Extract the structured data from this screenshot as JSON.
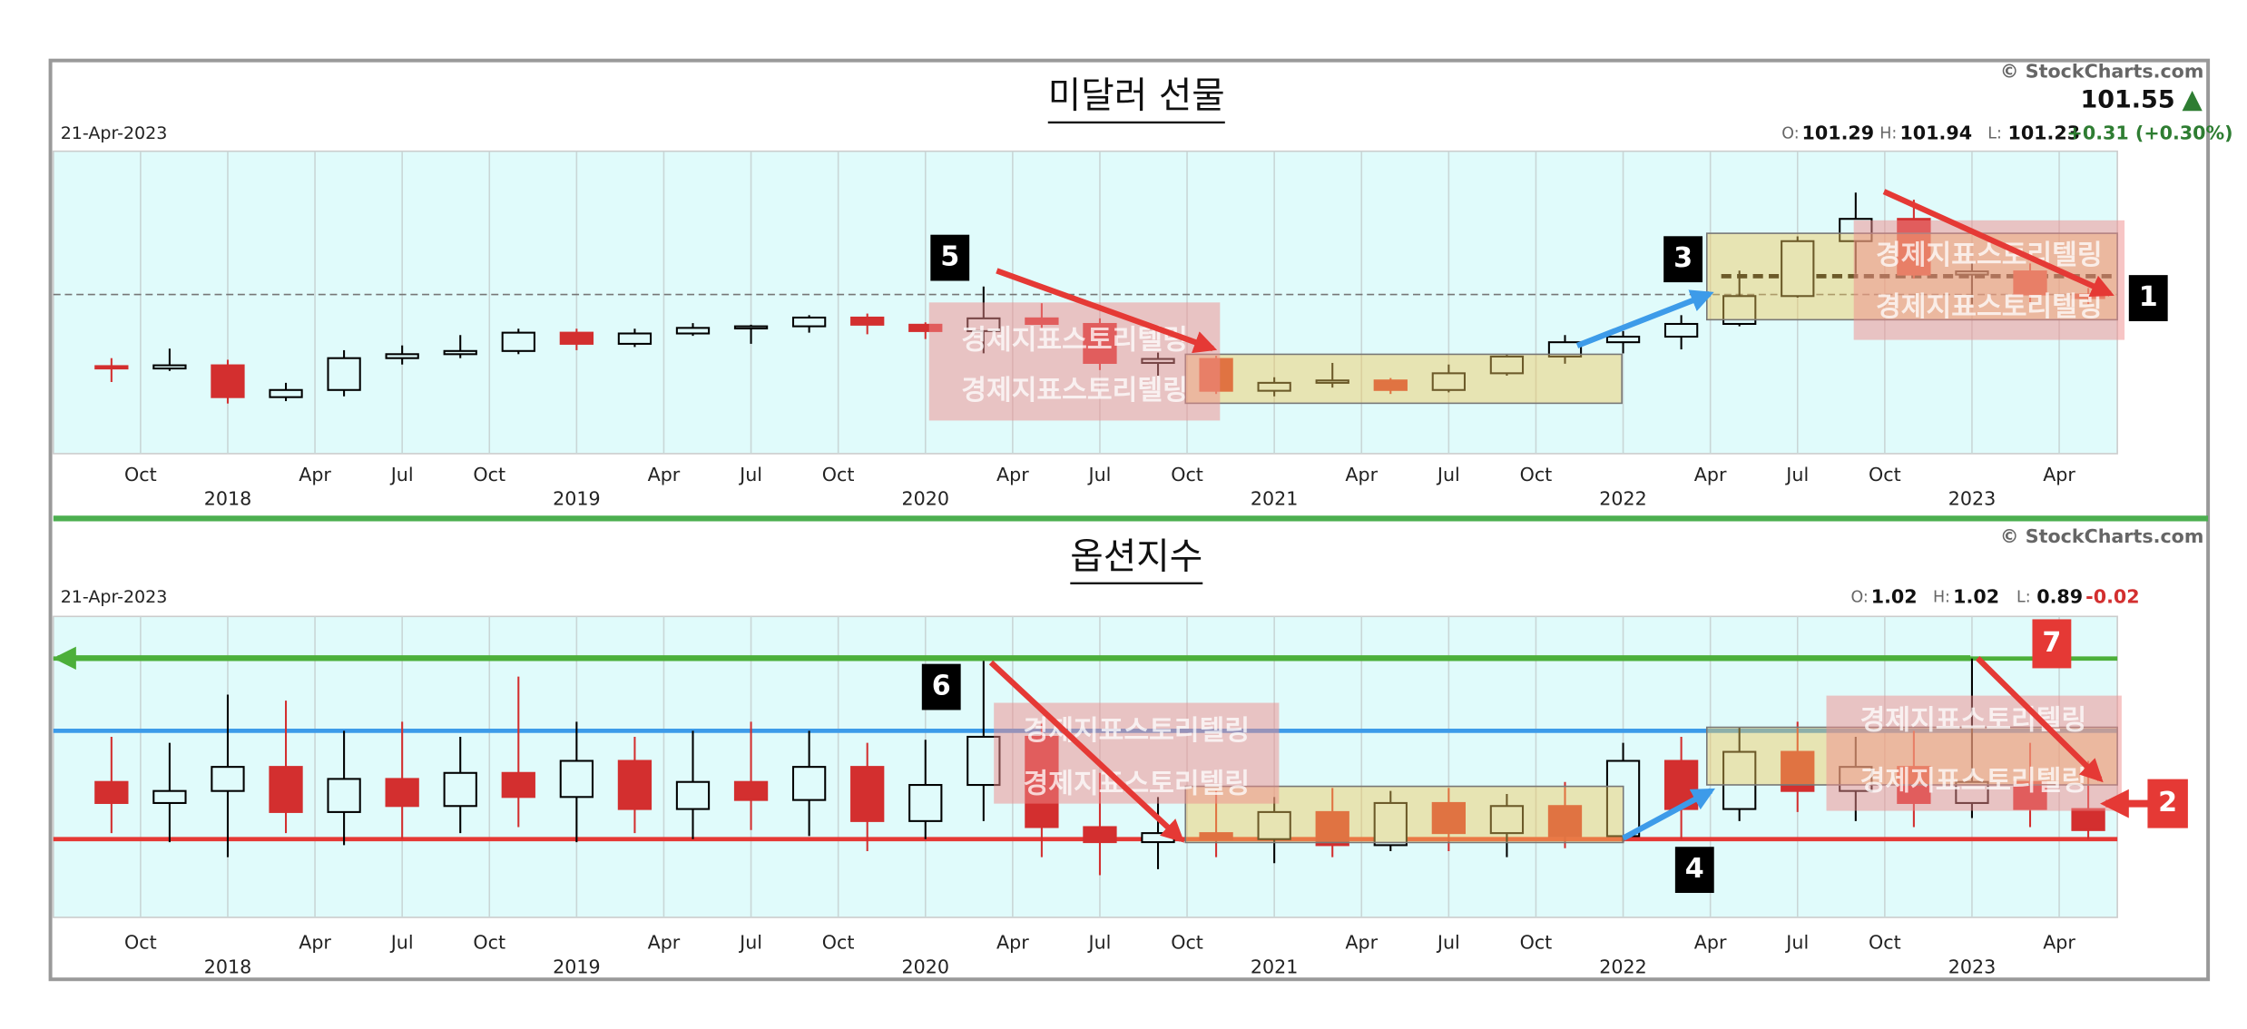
{
  "watermark": "경제지표스토리텔링",
  "callouts": [
    "1",
    "2",
    "3",
    "4",
    "5",
    "6",
    "7"
  ],
  "chart_data": [
    {
      "type": "candlestick",
      "title": "미달러 선물",
      "date": "21-Apr-2023",
      "source": "© StockCharts.com",
      "last": 101.55,
      "ohlc_labels": [
        "O:",
        "H:",
        "L:"
      ],
      "ohlc_values": [
        101.29,
        101.94,
        101.23
      ],
      "change": "+0.31 (+0.30%)",
      "change_color": "#2e7d32",
      "x": [
        "2017-08",
        "2017-10",
        "2017-12",
        "2018-02",
        "2018-04",
        "2018-06",
        "2018-08",
        "2018-10",
        "2018-12",
        "2019-02",
        "2019-04",
        "2019-06",
        "2019-08",
        "2019-10",
        "2019-12",
        "2020-02",
        "2020-04",
        "2020-06",
        "2020-08",
        "2020-10",
        "2020-12",
        "2021-02",
        "2021-04",
        "2021-06",
        "2021-08",
        "2021-10",
        "2021-12",
        "2022-02",
        "2022-04",
        "2022-06",
        "2022-08",
        "2022-10",
        "2022-12",
        "2023-02",
        "2023-04"
      ],
      "open": [
        93.0,
        92.7,
        93.1,
        89.1,
        90.0,
        94.0,
        94.5,
        94.9,
        97.2,
        95.8,
        97.1,
        97.8,
        98.0,
        99.1,
        98.2,
        97.4,
        99.0,
        98.3,
        93.4,
        93.9,
        89.9,
        90.9,
        91.2,
        90.0,
        92.1,
        94.2,
        96.0,
        96.7,
        98.3,
        101.8,
        108.7,
        111.5,
        104.5,
        104.9,
        102.0
      ],
      "high": [
        94.0,
        95.2,
        93.8,
        90.9,
        95.0,
        95.6,
        96.9,
        97.7,
        97.7,
        97.7,
        98.4,
        98.2,
        99.4,
        99.6,
        98.5,
        103.0,
        100.9,
        99.0,
        94.7,
        94.3,
        91.6,
        93.4,
        91.5,
        93.2,
        94.5,
        96.9,
        97.4,
        99.4,
        105.0,
        109.3,
        114.8,
        113.9,
        105.9,
        105.9,
        102.8
      ],
      "low": [
        91.0,
        92.4,
        88.3,
        88.6,
        89.2,
        93.2,
        94.0,
        94.5,
        95.0,
        95.4,
        96.8,
        95.8,
        97.2,
        97.0,
        96.4,
        94.6,
        97.8,
        92.5,
        91.8,
        89.5,
        89.2,
        90.3,
        89.5,
        89.7,
        91.8,
        93.3,
        94.6,
        95.1,
        98.0,
        101.6,
        104.6,
        104.0,
        100.8,
        100.8,
        100.8
      ],
      "close": [
        92.7,
        93.1,
        89.1,
        90.0,
        94.0,
        94.5,
        94.9,
        97.2,
        95.8,
        97.1,
        97.8,
        98.0,
        99.1,
        98.2,
        97.4,
        99.0,
        98.3,
        93.4,
        93.9,
        89.9,
        90.9,
        91.2,
        90.0,
        92.1,
        94.2,
        96.0,
        96.7,
        98.3,
        101.8,
        108.7,
        111.5,
        104.5,
        104.9,
        102.0,
        101.55
      ],
      "up_color": "#000000",
      "down_color": "#d32f2f",
      "background": "#e0fbfb",
      "xlim": [
        "2017-07",
        "2023-06"
      ],
      "ylim": [
        82,
        120
      ],
      "reference_lines": [
        {
          "value": 102.0,
          "color": "#777777"
        },
        {
          "value": 104.3,
          "color": "#000000"
        }
      ],
      "xticks": [
        {
          "value": "2017-10",
          "label": "Oct"
        },
        {
          "value": "2018-01",
          "label": "2018"
        },
        {
          "value": "2018-04",
          "label": "Apr"
        },
        {
          "value": "2018-07",
          "label": "Jul"
        },
        {
          "value": "2018-10",
          "label": "Oct"
        },
        {
          "value": "2019-01",
          "label": "2019"
        },
        {
          "value": "2019-04",
          "label": "Apr"
        },
        {
          "value": "2019-07",
          "label": "Jul"
        },
        {
          "value": "2019-10",
          "label": "Oct"
        },
        {
          "value": "2020-01",
          "label": "2020"
        },
        {
          "value": "2020-04",
          "label": "Apr"
        },
        {
          "value": "2020-07",
          "label": "Jul"
        },
        {
          "value": "2020-10",
          "label": "Oct"
        },
        {
          "value": "2021-01",
          "label": "2021"
        },
        {
          "value": "2021-04",
          "label": "Apr"
        },
        {
          "value": "2021-07",
          "label": "Jul"
        },
        {
          "value": "2021-10",
          "label": "Oct"
        },
        {
          "value": "2022-01",
          "label": "2022"
        },
        {
          "value": "2022-04",
          "label": "Apr"
        },
        {
          "value": "2022-07",
          "label": "Jul"
        },
        {
          "value": "2022-10",
          "label": "Oct"
        },
        {
          "value": "2023-01",
          "label": "2023"
        },
        {
          "value": "2023-04",
          "label": "Apr"
        }
      ],
      "grid": true
    },
    {
      "type": "candlestick",
      "title": "옵션지수",
      "date": "21-Apr-2023",
      "source": "© StockCharts.com",
      "ohlc_labels": [
        "O:",
        "H:",
        "L:"
      ],
      "ohlc_values": [
        1.02,
        1.02,
        0.89
      ],
      "change": "-0.02",
      "change_color": "#d32f2f",
      "x": [
        "2017-08",
        "2017-10",
        "2017-12",
        "2018-02",
        "2018-04",
        "2018-06",
        "2018-08",
        "2018-10",
        "2018-12",
        "2019-02",
        "2019-04",
        "2019-06",
        "2019-08",
        "2019-10",
        "2019-12",
        "2020-02",
        "2020-04",
        "2020-06",
        "2020-08",
        "2020-10",
        "2020-12",
        "2021-02",
        "2021-04",
        "2021-06",
        "2021-08",
        "2021-10",
        "2021-12",
        "2022-02",
        "2022-04",
        "2022-06",
        "2022-08",
        "2022-10",
        "2022-12",
        "2023-02",
        "2023-04"
      ],
      "open": [
        1.05,
        0.98,
        1.02,
        1.1,
        0.95,
        1.06,
        0.97,
        1.08,
        1.0,
        1.12,
        0.96,
        1.05,
        0.99,
        1.1,
        0.92,
        1.04,
        1.2,
        0.9,
        0.85,
        0.88,
        0.86,
        0.95,
        0.84,
        0.98,
        0.88,
        0.97,
        0.87,
        1.12,
        0.96,
        1.15,
        1.02,
        1.1,
        0.98,
        1.05,
        0.96
      ],
      "high": [
        1.2,
        1.18,
        1.34,
        1.32,
        1.22,
        1.25,
        1.2,
        1.4,
        1.25,
        1.2,
        1.22,
        1.25,
        1.22,
        1.18,
        1.19,
        1.46,
        1.25,
        1.08,
        1.0,
        1.02,
        1.0,
        1.03,
        1.02,
        1.03,
        1.01,
        1.05,
        1.18,
        1.2,
        1.23,
        1.25,
        1.2,
        1.22,
        1.46,
        1.18,
        1.12
      ],
      "low": [
        0.88,
        0.85,
        0.8,
        0.88,
        0.84,
        0.86,
        0.88,
        0.9,
        0.85,
        0.88,
        0.86,
        0.89,
        0.87,
        0.82,
        0.86,
        0.92,
        0.8,
        0.74,
        0.76,
        0.8,
        0.78,
        0.8,
        0.82,
        0.82,
        0.8,
        0.83,
        0.85,
        0.86,
        0.92,
        0.95,
        0.92,
        0.9,
        0.93,
        0.9,
        0.86
      ],
      "close": [
        0.98,
        1.02,
        1.1,
        0.95,
        1.06,
        0.97,
        1.08,
        1.0,
        1.12,
        0.96,
        1.05,
        0.99,
        1.1,
        0.92,
        1.04,
        1.2,
        0.9,
        0.85,
        0.88,
        0.86,
        0.95,
        0.84,
        0.98,
        0.88,
        0.97,
        0.87,
        1.12,
        0.96,
        1.15,
        1.02,
        1.1,
        0.98,
        1.05,
        0.96,
        0.89
      ],
      "up_color": "#000000",
      "down_color": "#d32f2f",
      "background": "#e0fbfb",
      "xlim": [
        "2017-07",
        "2023-06"
      ],
      "ylim": [
        0.6,
        1.6
      ],
      "reference_lines": [
        {
          "value": 1.46,
          "color": "#4caf3a"
        },
        {
          "value": 1.22,
          "color": "#3d9be9"
        },
        {
          "value": 0.86,
          "color": "#e53935"
        }
      ],
      "xticks": [
        {
          "value": "2017-10",
          "label": "Oct"
        },
        {
          "value": "2018-01",
          "label": "2018"
        },
        {
          "value": "2018-04",
          "label": "Apr"
        },
        {
          "value": "2018-07",
          "label": "Jul"
        },
        {
          "value": "2018-10",
          "label": "Oct"
        },
        {
          "value": "2019-01",
          "label": "2019"
        },
        {
          "value": "2019-04",
          "label": "Apr"
        },
        {
          "value": "2019-07",
          "label": "Jul"
        },
        {
          "value": "2019-10",
          "label": "Oct"
        },
        {
          "value": "2020-01",
          "label": "2020"
        },
        {
          "value": "2020-04",
          "label": "Apr"
        },
        {
          "value": "2020-07",
          "label": "Jul"
        },
        {
          "value": "2020-10",
          "label": "Oct"
        },
        {
          "value": "2021-01",
          "label": "2021"
        },
        {
          "value": "2021-04",
          "label": "Apr"
        },
        {
          "value": "2021-07",
          "label": "Jul"
        },
        {
          "value": "2021-10",
          "label": "Oct"
        },
        {
          "value": "2022-01",
          "label": "2022"
        },
        {
          "value": "2022-04",
          "label": "Apr"
        },
        {
          "value": "2022-07",
          "label": "Jul"
        },
        {
          "value": "2022-10",
          "label": "Oct"
        },
        {
          "value": "2023-01",
          "label": "2023"
        },
        {
          "value": "2023-04",
          "label": "Apr"
        }
      ],
      "grid": true
    }
  ]
}
